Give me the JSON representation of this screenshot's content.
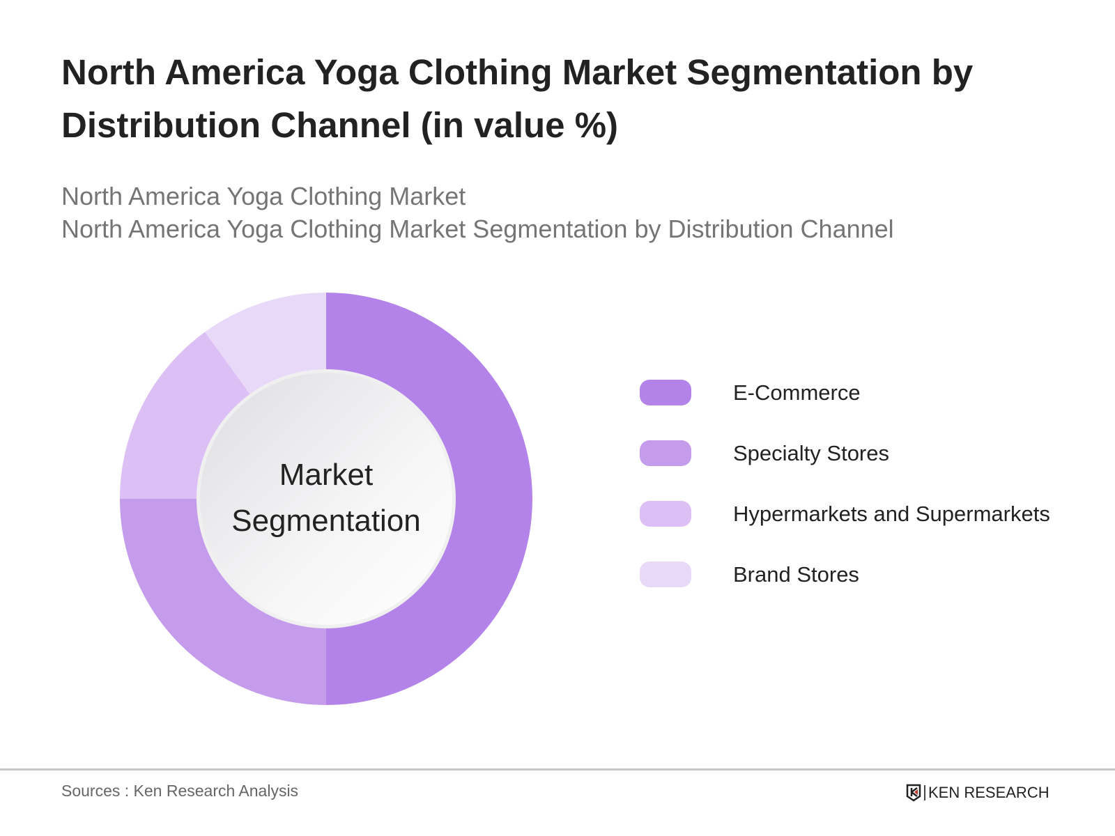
{
  "title": "North America Yoga Clothing Market Segmentation by Distribution Channel (in value %)",
  "subtitle_lines": [
    "North America Yoga Clothing Market",
    "North America Yoga Clothing Market Segmentation by Distribution Channel"
  ],
  "chart_data": {
    "type": "pie",
    "variant": "donut",
    "center_label": [
      "Market",
      "Segmentation"
    ],
    "categories": [
      "E-Commerce",
      "Specialty Stores",
      "Hypermarkets and Supermarkets",
      "Brand Stores"
    ],
    "values": [
      50,
      25,
      15,
      10
    ],
    "colors": [
      "#b383e9",
      "#c59bec",
      "#dcc0f5",
      "#e9d9f9"
    ],
    "legend_position": "right"
  },
  "footer": {
    "source": "Sources : Ken Research Analysis",
    "logo_text": "KEN RESEARCH"
  }
}
